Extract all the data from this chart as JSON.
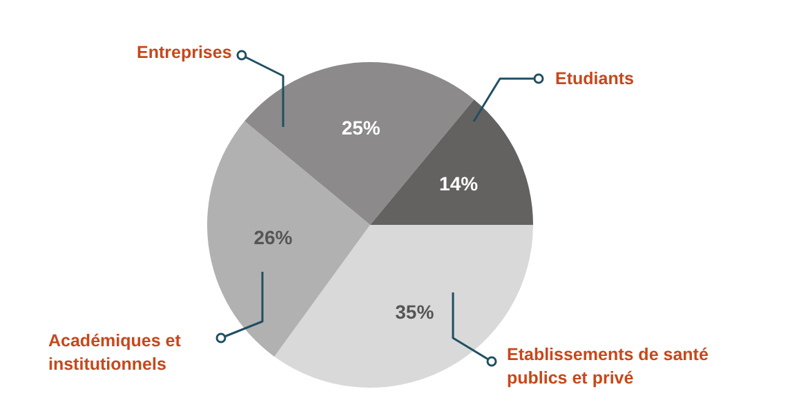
{
  "chart_data": {
    "type": "pie",
    "categories": [
      "Etablissements de santé publics et privé",
      "Académiques et institutionnels",
      "Entreprises",
      "Etudiants"
    ],
    "values": [
      35,
      26,
      25,
      14
    ],
    "colors": [
      "#d9d9d9",
      "#b2b1b1",
      "#8c8a8a",
      "#646161"
    ],
    "value_labels": [
      "35%",
      "26%",
      "25%",
      "14%"
    ]
  }
}
